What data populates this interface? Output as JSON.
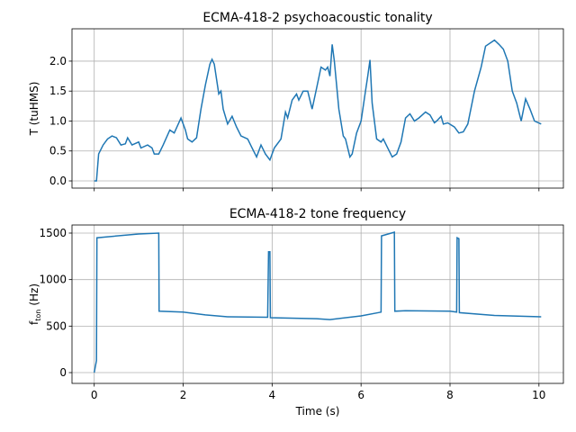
{
  "chart_data": [
    {
      "type": "line",
      "title": "ECMA-418-2 psychoacoustic tonality",
      "ylabel": "T (tuHMS)",
      "xlim": [
        -0.5,
        10.55
      ],
      "ylim": [
        -0.12,
        2.54
      ],
      "xticks": [
        0,
        2,
        4,
        6,
        8,
        10
      ],
      "show_xticklabels": false,
      "yticks": [
        {
          "value": 0,
          "label": "0.0"
        },
        {
          "value": 0.5,
          "label": "0.5"
        },
        {
          "value": 1,
          "label": "1.0"
        },
        {
          "value": 1.5,
          "label": "1.5"
        },
        {
          "value": 2,
          "label": "2.0"
        }
      ],
      "grid": true,
      "series": [
        {
          "color": "#1f77b4",
          "x": [
            0,
            0.05,
            0.1,
            0.2,
            0.3,
            0.4,
            0.5,
            0.6,
            0.7,
            0.75,
            0.85,
            1.0,
            1.05,
            1.2,
            1.3,
            1.35,
            1.45,
            1.55,
            1.7,
            1.8,
            1.95,
            2.05,
            2.1,
            2.2,
            2.3,
            2.4,
            2.5,
            2.6,
            2.65,
            2.7,
            2.8,
            2.85,
            2.9,
            3.0,
            3.1,
            3.2,
            3.3,
            3.45,
            3.55,
            3.65,
            3.75,
            3.85,
            3.95,
            4.05,
            4.2,
            4.3,
            4.35,
            4.45,
            4.55,
            4.6,
            4.7,
            4.8,
            4.9,
            5.0,
            5.1,
            5.2,
            5.25,
            5.3,
            5.35,
            5.4,
            5.5,
            5.6,
            5.65,
            5.75,
            5.8,
            5.9,
            6.0,
            6.1,
            6.15,
            6.2,
            6.25,
            6.35,
            6.45,
            6.5,
            6.6,
            6.7,
            6.8,
            6.9,
            7.0,
            7.1,
            7.2,
            7.3,
            7.45,
            7.55,
            7.65,
            7.7,
            7.8,
            7.85,
            7.95,
            8.1,
            8.2,
            8.3,
            8.4,
            8.55,
            8.7,
            8.8,
            9.0,
            9.1,
            9.2,
            9.3,
            9.4,
            9.5,
            9.6,
            9.7,
            9.8,
            9.9,
            10.05
          ],
          "values": [
            0,
            0,
            0.45,
            0.6,
            0.7,
            0.75,
            0.72,
            0.6,
            0.62,
            0.72,
            0.6,
            0.65,
            0.55,
            0.6,
            0.55,
            0.45,
            0.45,
            0.6,
            0.85,
            0.8,
            1.05,
            0.85,
            0.7,
            0.65,
            0.72,
            1.2,
            1.6,
            1.95,
            2.03,
            1.95,
            1.45,
            1.5,
            1.2,
            0.95,
            1.08,
            0.9,
            0.75,
            0.7,
            0.55,
            0.4,
            0.6,
            0.45,
            0.35,
            0.55,
            0.7,
            1.15,
            1.05,
            1.35,
            1.45,
            1.35,
            1.5,
            1.5,
            1.2,
            1.55,
            1.9,
            1.85,
            1.9,
            1.75,
            2.28,
            2.0,
            1.2,
            0.75,
            0.7,
            0.4,
            0.45,
            0.8,
            1.0,
            1.5,
            1.75,
            2.02,
            1.3,
            0.7,
            0.65,
            0.7,
            0.55,
            0.4,
            0.45,
            0.65,
            1.05,
            1.12,
            1.0,
            1.05,
            1.15,
            1.1,
            0.97,
            1.0,
            1.08,
            0.95,
            0.97,
            0.9,
            0.8,
            0.82,
            0.95,
            1.5,
            1.9,
            2.25,
            2.35,
            2.28,
            2.2,
            2.0,
            1.5,
            1.3,
            1.0,
            1.37,
            1.2,
            1.0,
            0.95
          ]
        }
      ]
    },
    {
      "type": "line",
      "title": "ECMA-418-2 tone frequency",
      "ylabel": [
        "f",
        "ton",
        "(Hz)"
      ],
      "xlabel": "Time (s)",
      "xlim": [
        -0.5,
        10.55
      ],
      "ylim": [
        -116,
        1587
      ],
      "xticks": [
        0,
        2,
        4,
        6,
        8,
        10
      ],
      "show_xticklabels": true,
      "yticks": [
        0,
        500,
        1000,
        1500
      ],
      "grid": true,
      "series": [
        {
          "color": "#1f77b4",
          "x": [
            0,
            0.05,
            0.06,
            0.3,
            1.0,
            1.45,
            1.46,
            2.0,
            2.5,
            3.0,
            3.9,
            3.92,
            3.95,
            3.96,
            5.0,
            5.3,
            6.0,
            6.45,
            6.46,
            6.75,
            6.76,
            7.0,
            8.0,
            8.15,
            8.16,
            8.2,
            8.21,
            9.0,
            10.05
          ],
          "values": [
            0,
            130,
            1450,
            1460,
            1490,
            1500,
            660,
            650,
            620,
            600,
            595,
            1300,
            1300,
            590,
            580,
            570,
            610,
            650,
            1470,
            1510,
            660,
            665,
            660,
            650,
            1450,
            1440,
            645,
            615,
            600
          ]
        }
      ]
    }
  ]
}
